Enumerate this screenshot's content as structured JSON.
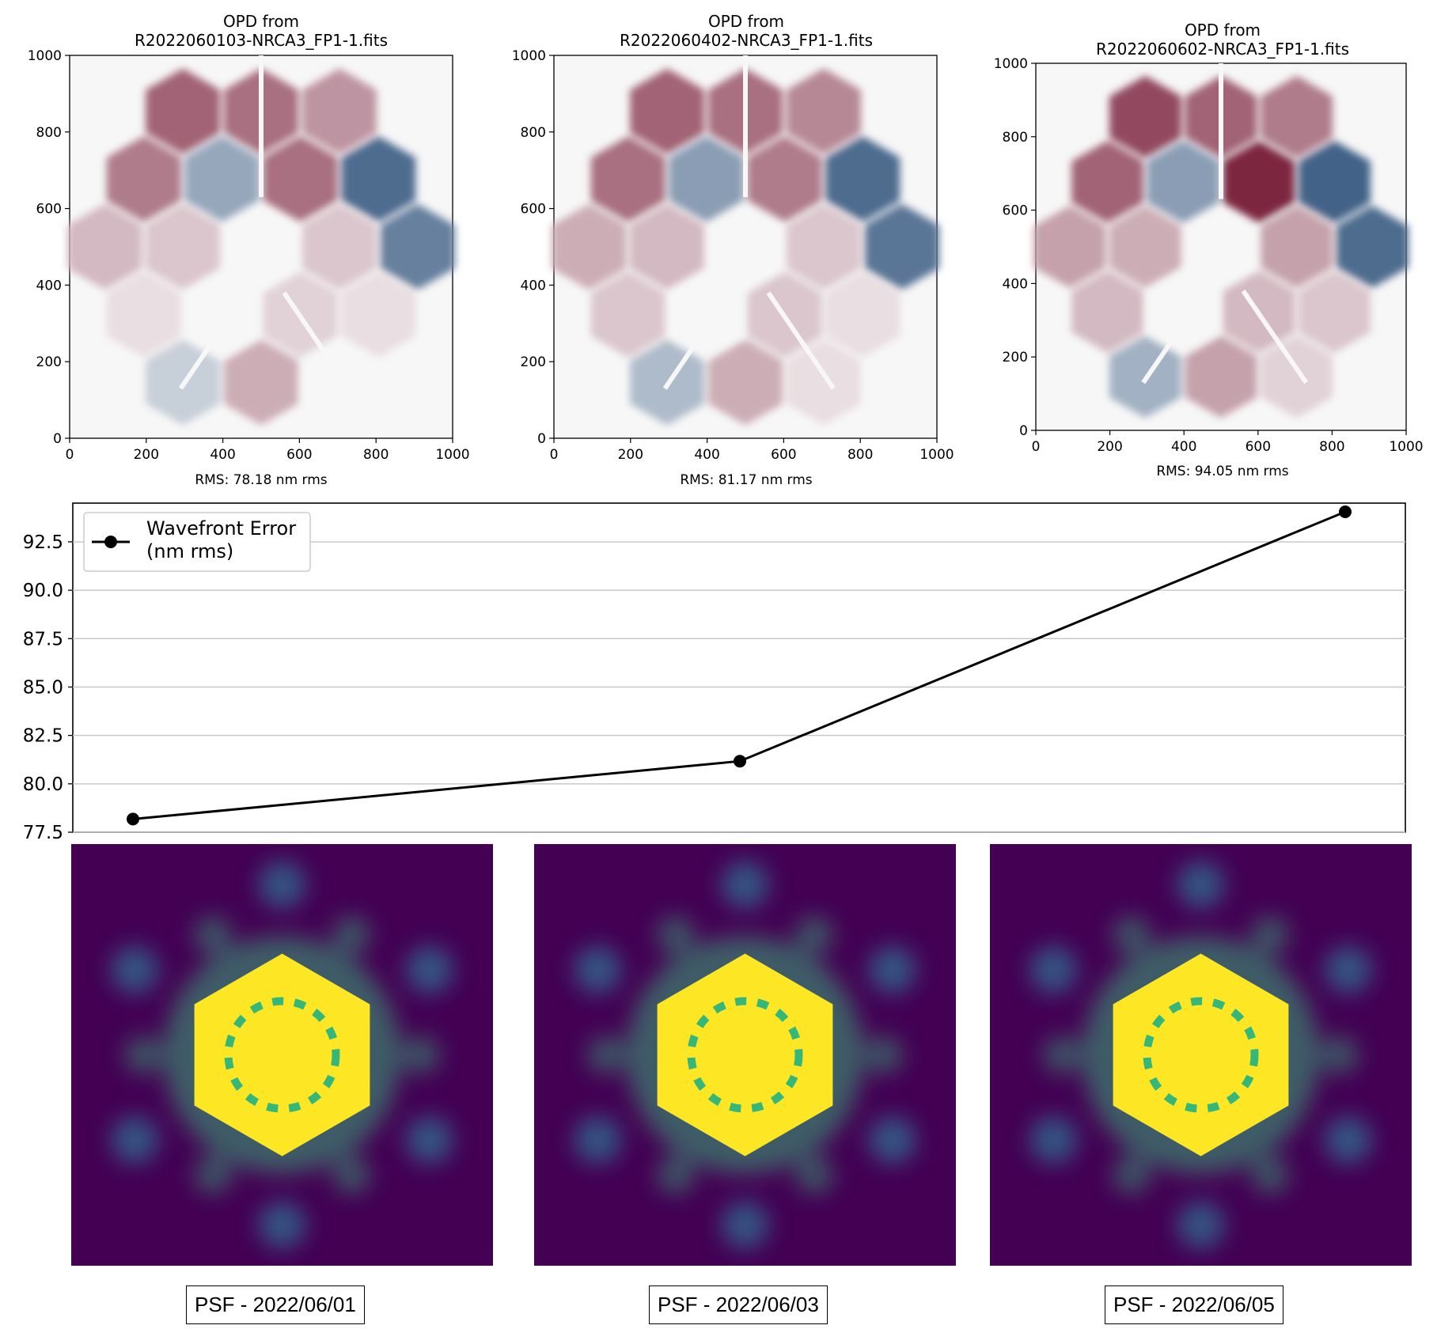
{
  "opd_panels": [
    {
      "title_line1": "OPD from",
      "title_line2": "R2022060103-NRCA3_FP1-1.fits",
      "xlabel": "RMS: 78.18 nm rms",
      "ticks": [
        "0",
        "200",
        "400",
        "600",
        "800",
        "1000"
      ]
    },
    {
      "title_line1": "OPD from",
      "title_line2": "R2022060402-NRCA3_FP1-1.fits",
      "xlabel": "RMS: 81.17 nm rms",
      "ticks": [
        "0",
        "200",
        "400",
        "600",
        "800",
        "1000"
      ]
    },
    {
      "title_line1": "OPD from",
      "title_line2": "R2022060602-NRCA3_FP1-1.fits",
      "xlabel": "RMS: 94.05 nm rms",
      "ticks": [
        "0",
        "200",
        "400",
        "600",
        "800",
        "1000"
      ]
    }
  ],
  "chart_data": {
    "type": "line",
    "values": [
      78.18,
      81.17,
      94.05
    ],
    "legend": [
      "Wavefront Error",
      "(nm rms)"
    ],
    "legend_position": "top-left",
    "ylim": [
      77.5,
      94.5
    ],
    "yticks": [
      "77.5",
      "80.0",
      "82.5",
      "85.0",
      "87.5",
      "90.0",
      "92.5"
    ],
    "grid": "horizontal",
    "line_color": "#000000"
  },
  "psf_labels": [
    "PSF - 2022/06/01",
    "PSF - 2022/06/03",
    "PSF - 2022/06/05"
  ],
  "colors": {
    "opd_low": "#053061",
    "opd_mid": "#f7f7f7",
    "opd_high": "#67001f",
    "psf_bg": "#440154",
    "psf_mid": "#31688e",
    "psf_high": "#35b779",
    "psf_sat": "#fde725"
  }
}
